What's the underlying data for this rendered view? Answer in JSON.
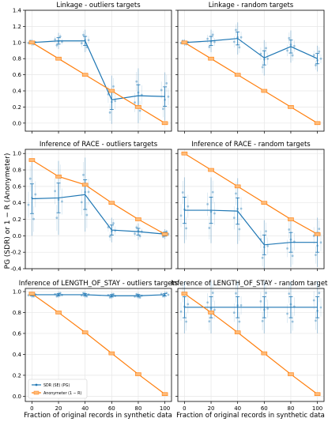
{
  "figure": {
    "ylabel": "PG (SDR) or 1 − R (Anonymeter)",
    "xlabel": "Fraction of original records in synthetic data",
    "legend": {
      "sdr": "SDR (SE) (PG)",
      "anon": "Anonymeter (1 − R)"
    }
  },
  "colors": {
    "sdr": "#1f77b4",
    "anon": "#ff7f0e",
    "anon_light": "#ffbb78"
  },
  "chart_data": [
    {
      "type": "line",
      "title": "Linkage - outliers targets",
      "x": [
        0,
        20,
        40,
        60,
        80,
        100
      ],
      "ylim": [
        -0.1,
        1.4
      ],
      "yticks": [
        0.0,
        0.2,
        0.4,
        0.6,
        0.8,
        1.0,
        1.2,
        1.4
      ],
      "grid": true,
      "series": [
        {
          "name": "SDR (SE) (PG)",
          "values": [
            1.0,
            1.02,
            1.02,
            0.29,
            0.34,
            0.33
          ],
          "ci": [
            0.04,
            0.1,
            0.14,
            0.3,
            0.34,
            0.3
          ]
        },
        {
          "name": "Anonymeter (1 − R)",
          "values": [
            1.0,
            0.8,
            0.6,
            0.4,
            0.2,
            0.0
          ]
        }
      ]
    },
    {
      "type": "line",
      "title": "Linkage - random targets",
      "x": [
        0,
        20,
        40,
        60,
        80,
        100
      ],
      "ylim": [
        -0.1,
        1.4
      ],
      "yticks": [
        0.0,
        0.2,
        0.4,
        0.6,
        0.8,
        1.0,
        1.2,
        1.4
      ],
      "grid": true,
      "series": [
        {
          "name": "SDR (SE) (PG)",
          "values": [
            1.0,
            1.02,
            1.05,
            0.81,
            0.95,
            0.8
          ],
          "ci": [
            0.04,
            0.14,
            0.2,
            0.22,
            0.2,
            0.16
          ]
        },
        {
          "name": "Anonymeter (1 − R)",
          "values": [
            1.0,
            0.8,
            0.6,
            0.4,
            0.2,
            0.0
          ]
        }
      ]
    },
    {
      "type": "line",
      "title": "Inference of RACE - outliers targets",
      "x": [
        0,
        20,
        40,
        60,
        80,
        100
      ],
      "ylim": [
        -0.4,
        1.05
      ],
      "yticks": [
        -0.4,
        -0.2,
        0.0,
        0.2,
        0.4,
        0.6,
        0.8,
        1.0
      ],
      "grid": true,
      "series": [
        {
          "name": "SDR (SE) (PG)",
          "values": [
            0.45,
            0.46,
            0.5,
            0.07,
            0.05,
            0.02
          ],
          "ci": [
            0.45,
            0.45,
            0.45,
            0.15,
            0.1,
            0.06
          ]
        },
        {
          "name": "Anonymeter (1 − R)",
          "values": [
            0.92,
            0.72,
            0.62,
            0.4,
            0.2,
            0.02
          ]
        }
      ]
    },
    {
      "type": "line",
      "title": "Inference of RACE - random targets",
      "x": [
        0,
        20,
        40,
        60,
        80,
        100
      ],
      "ylim": [
        -0.4,
        1.05
      ],
      "yticks": [
        -0.4,
        -0.2,
        0.0,
        0.2,
        0.4,
        0.6,
        0.8,
        1.0
      ],
      "grid": true,
      "series": [
        {
          "name": "SDR (SE) (PG)",
          "values": [
            0.31,
            0.31,
            0.3,
            -0.11,
            -0.08,
            -0.08
          ],
          "ci": [
            0.4,
            0.4,
            0.4,
            0.3,
            0.3,
            0.3
          ]
        },
        {
          "name": "Anonymeter (1 − R)",
          "values": [
            1.0,
            0.8,
            0.6,
            0.4,
            0.2,
            0.02
          ]
        }
      ]
    },
    {
      "type": "line",
      "title": "Inference of LENGTH_OF_STAY - outliers targets",
      "x": [
        0,
        20,
        40,
        60,
        80,
        100
      ],
      "ylim": [
        -0.05,
        1.03
      ],
      "yticks": [
        0.0,
        0.2,
        0.4,
        0.6,
        0.8,
        1.0
      ],
      "grid": true,
      "series": [
        {
          "name": "SDR (SE) (PG)",
          "values": [
            0.97,
            0.97,
            0.97,
            0.96,
            0.96,
            0.97
          ],
          "ci": [
            0.03,
            0.03,
            0.03,
            0.03,
            0.03,
            0.03
          ]
        },
        {
          "name": "Anonymeter (1 − R)",
          "values": [
            0.98,
            0.8,
            0.61,
            0.41,
            0.21,
            0.02
          ]
        }
      ]
    },
    {
      "type": "line",
      "title": "Inference of LENGTH_OF_STAY - random targets",
      "x": [
        0,
        20,
        40,
        60,
        80,
        100
      ],
      "ylim": [
        -0.05,
        1.03
      ],
      "yticks": [
        0.0,
        0.2,
        0.4,
        0.6,
        0.8,
        1.0
      ],
      "grid": true,
      "series": [
        {
          "name": "SDR (SE) (PG)",
          "values": [
            0.85,
            0.85,
            0.85,
            0.85,
            0.85,
            0.85
          ],
          "ci": [
            0.25,
            0.25,
            0.25,
            0.25,
            0.25,
            0.25
          ]
        },
        {
          "name": "Anonymeter (1 − R)",
          "values": [
            0.98,
            0.8,
            0.61,
            0.41,
            0.21,
            0.02
          ]
        }
      ]
    }
  ]
}
